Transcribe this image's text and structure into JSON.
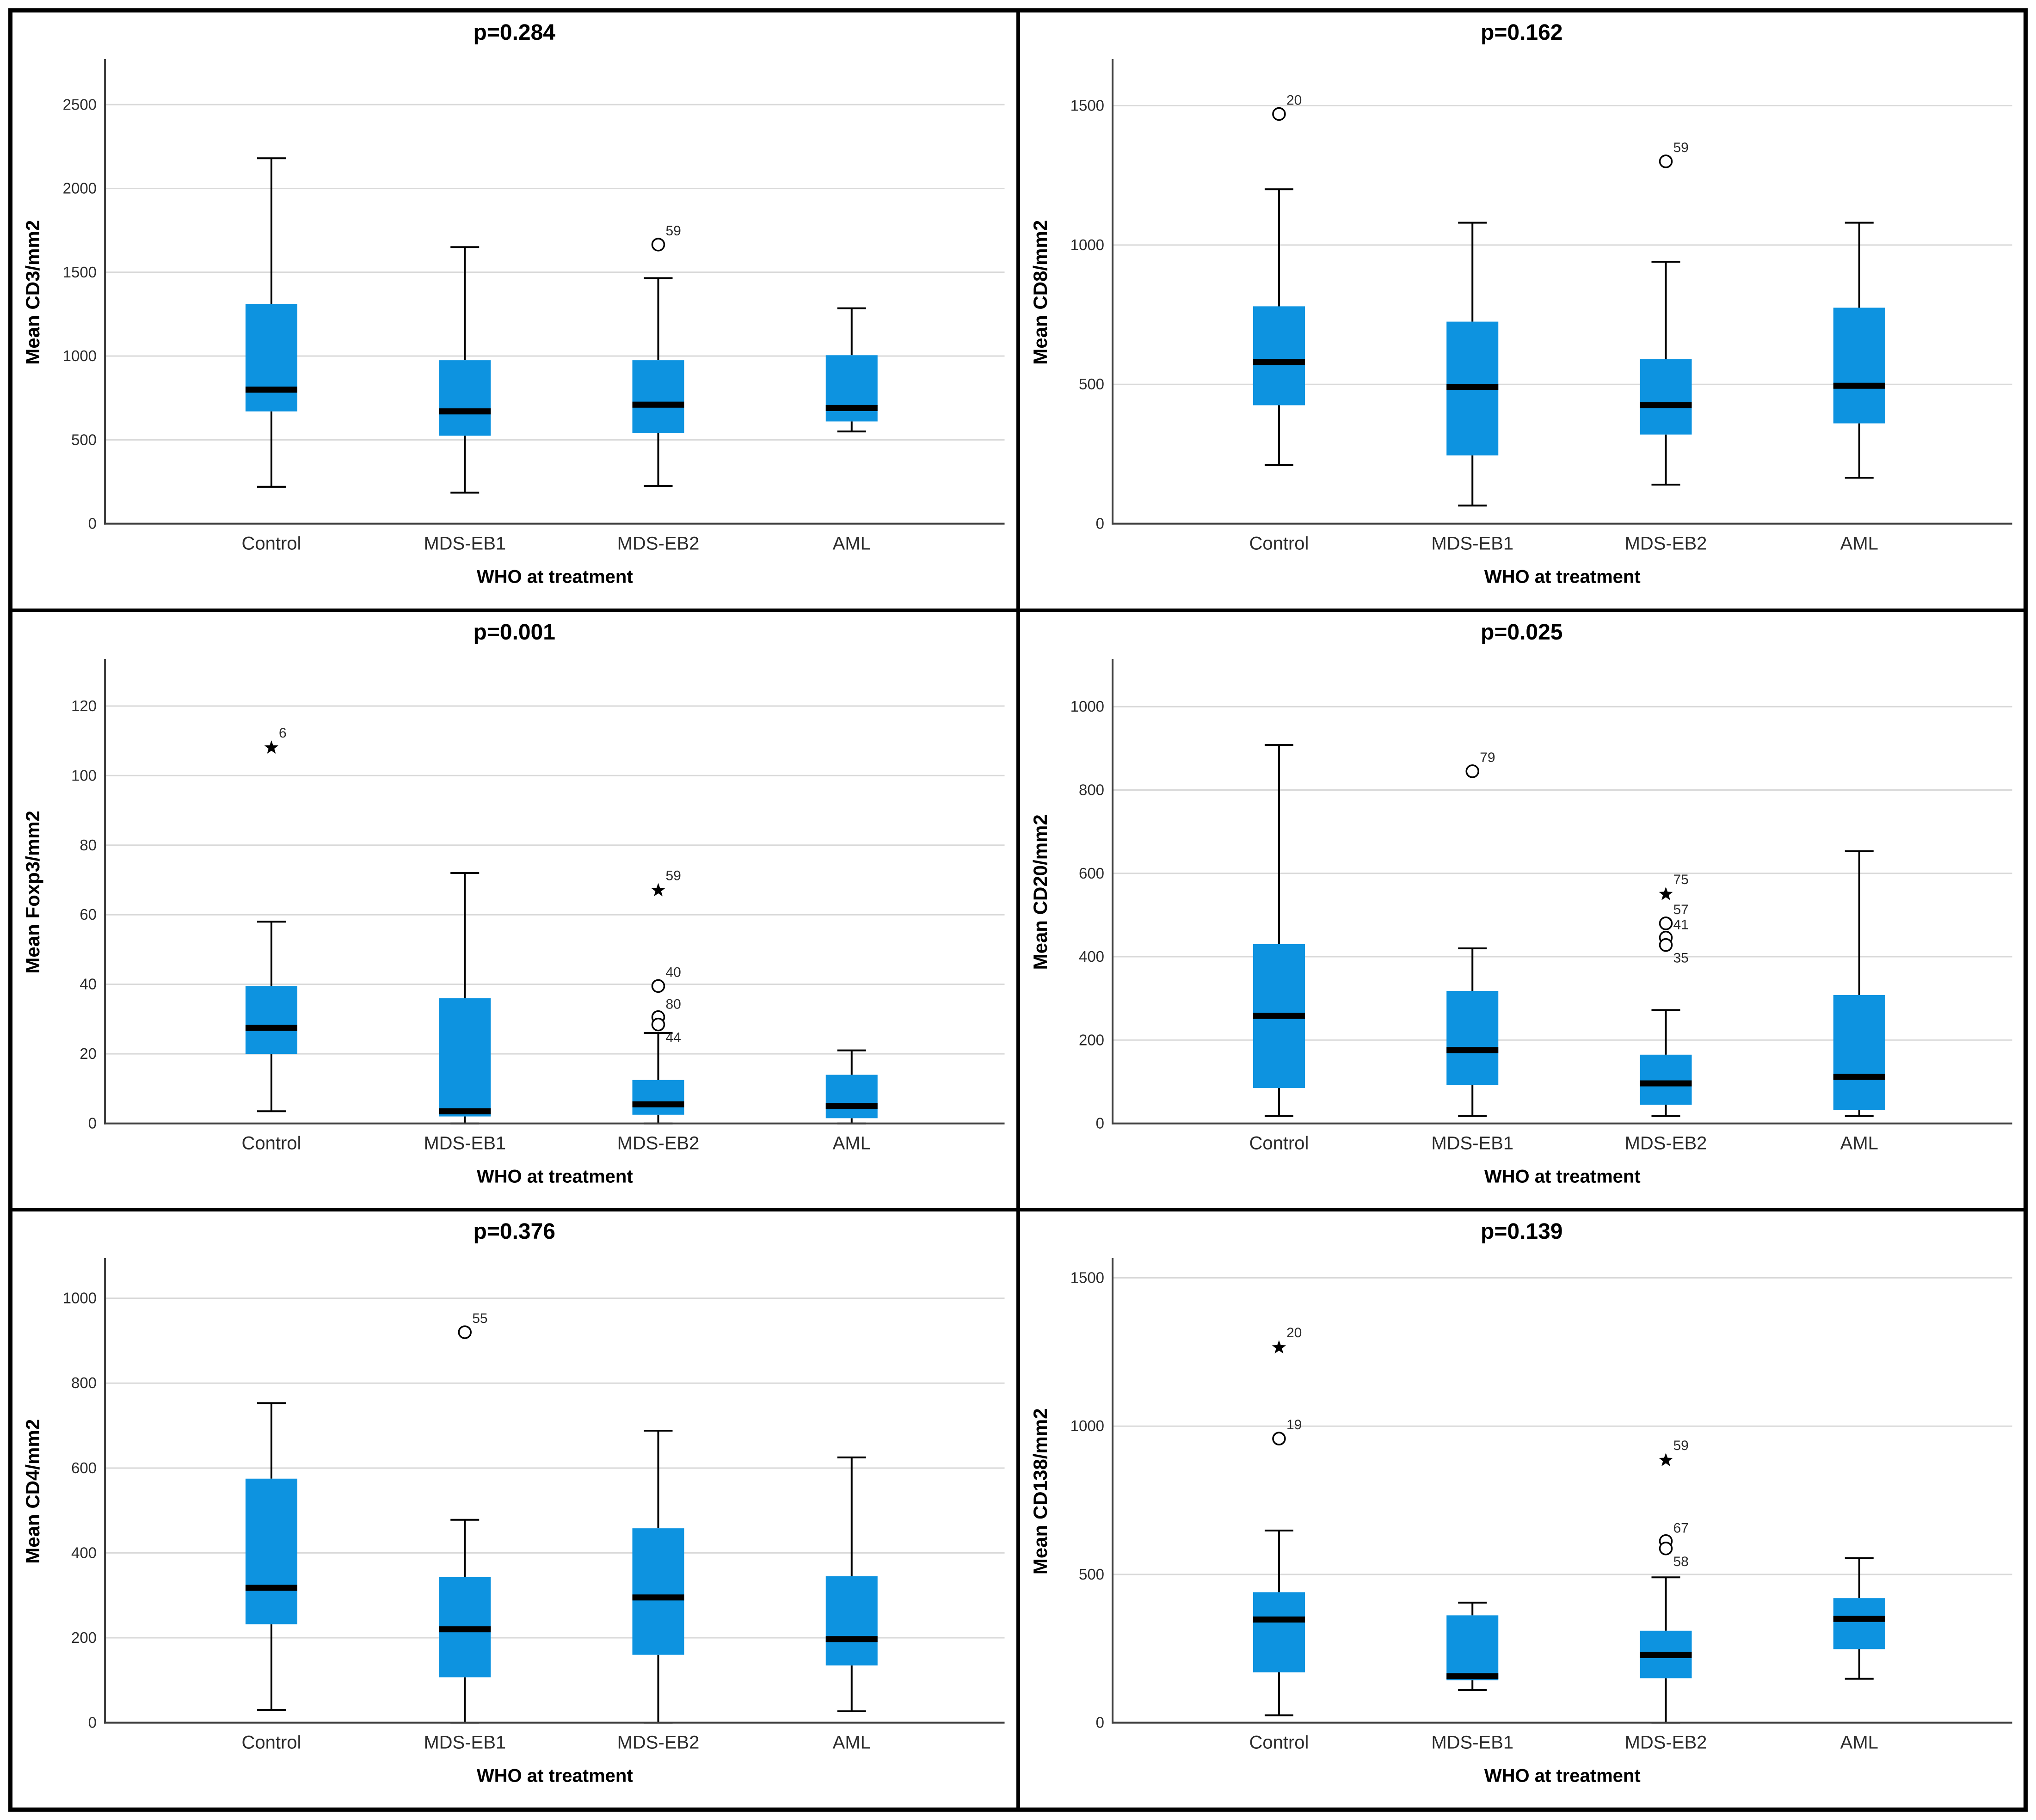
{
  "figure": {
    "description": "Six SPSS-style box plots comparing immunohistochemistry cell densities across WHO treatment groups",
    "x_axis_title": "WHO at treatment",
    "categories": [
      "Control",
      "MDS-EB1",
      "MDS-EB2",
      "AML"
    ]
  },
  "style": {
    "background": "#ffffff",
    "panel_border": "#000000",
    "box_fill": "#0d93e0",
    "median_color": "#000000",
    "whisker_color": "#000000",
    "grid_color": "#d9d9d9",
    "axis_color": "#404040",
    "text_color": "#2b2b2b",
    "title_color": "#000000"
  },
  "chart_data": [
    {
      "type": "box",
      "title": "p=0.284",
      "ylabel": "Mean CD3/mm2",
      "xlabel": "WHO at treatment",
      "categories": [
        "Control",
        "MDS-EB1",
        "MDS-EB2",
        "AML"
      ],
      "ylim": [
        0,
        2760
      ],
      "yticks": [
        0,
        500,
        1000,
        1500,
        2000,
        2500
      ],
      "grid": true,
      "boxes": [
        {
          "category": "Control",
          "min": 220,
          "q1": 670,
          "median": 800,
          "q3": 1310,
          "max": 2180,
          "outliers": []
        },
        {
          "category": "MDS-EB1",
          "min": 185,
          "q1": 525,
          "median": 670,
          "q3": 975,
          "max": 1650,
          "outliers": []
        },
        {
          "category": "MDS-EB2",
          "min": 225,
          "q1": 540,
          "median": 710,
          "q3": 975,
          "max": 1465,
          "outliers": [
            {
              "value": 1665,
              "marker": "circle",
              "label": "59"
            }
          ]
        },
        {
          "category": "AML",
          "min": 550,
          "q1": 610,
          "median": 690,
          "q3": 1005,
          "max": 1285,
          "outliers": []
        }
      ]
    },
    {
      "type": "box",
      "title": "p=0.162",
      "ylabel": "Mean CD8/mm2",
      "xlabel": "WHO at treatment",
      "categories": [
        "Control",
        "MDS-EB1",
        "MDS-EB2",
        "AML"
      ],
      "ylim": [
        0,
        1660
      ],
      "yticks": [
        0,
        500,
        1000,
        1500
      ],
      "grid": true,
      "boxes": [
        {
          "category": "Control",
          "min": 210,
          "q1": 425,
          "median": 580,
          "q3": 780,
          "max": 1200,
          "outliers": [
            {
              "value": 1470,
              "marker": "circle",
              "label": "20"
            }
          ]
        },
        {
          "category": "MDS-EB1",
          "min": 65,
          "q1": 245,
          "median": 490,
          "q3": 725,
          "max": 1080,
          "outliers": []
        },
        {
          "category": "MDS-EB2",
          "min": 140,
          "q1": 320,
          "median": 425,
          "q3": 590,
          "max": 940,
          "outliers": [
            {
              "value": 1300,
              "marker": "circle",
              "label": "59"
            }
          ]
        },
        {
          "category": "AML",
          "min": 165,
          "q1": 360,
          "median": 495,
          "q3": 775,
          "max": 1080,
          "outliers": []
        }
      ]
    },
    {
      "type": "box",
      "title": "p=0.001",
      "ylabel": "Mean Foxp3/mm2",
      "xlabel": "WHO at treatment",
      "categories": [
        "Control",
        "MDS-EB1",
        "MDS-EB2",
        "AML"
      ],
      "ylim": [
        0,
        133
      ],
      "yticks": [
        0,
        20,
        40,
        60,
        80,
        100,
        120
      ],
      "grid": true,
      "boxes": [
        {
          "category": "Control",
          "min": 3.5,
          "q1": 20,
          "median": 27.5,
          "q3": 39.5,
          "max": 58,
          "outliers": [
            {
              "value": 108,
              "marker": "star",
              "label": "6"
            }
          ]
        },
        {
          "category": "MDS-EB1",
          "min": 0,
          "q1": 2,
          "median": 3.5,
          "q3": 36,
          "max": 72,
          "outliers": []
        },
        {
          "category": "MDS-EB2",
          "min": 0,
          "q1": 2.5,
          "median": 5.5,
          "q3": 12.5,
          "max": 26,
          "outliers": [
            {
              "value": 67,
              "marker": "star",
              "label": "59"
            },
            {
              "value": 39.5,
              "marker": "circle",
              "label": "40"
            },
            {
              "value": 29.5,
              "marker": "circle2",
              "label": "80",
              "label2": "44"
            }
          ]
        },
        {
          "category": "AML",
          "min": 0,
          "q1": 1.5,
          "median": 5,
          "q3": 14,
          "max": 21,
          "outliers": []
        }
      ]
    },
    {
      "type": "box",
      "title": "p=0.025",
      "ylabel": "Mean CD20/mm2",
      "xlabel": "WHO at treatment",
      "categories": [
        "Control",
        "MDS-EB1",
        "MDS-EB2",
        "AML"
      ],
      "ylim": [
        0,
        1110
      ],
      "yticks": [
        0,
        200,
        400,
        600,
        800,
        1000
      ],
      "grid": true,
      "boxes": [
        {
          "category": "Control",
          "min": 18,
          "q1": 85,
          "median": 258,
          "q3": 430,
          "max": 908,
          "outliers": []
        },
        {
          "category": "MDS-EB1",
          "min": 18,
          "q1": 92,
          "median": 176,
          "q3": 318,
          "max": 420,
          "outliers": [
            {
              "value": 845,
              "marker": "circle",
              "label": "79"
            }
          ]
        },
        {
          "category": "MDS-EB2",
          "min": 18,
          "q1": 45,
          "median": 96,
          "q3": 165,
          "max": 272,
          "outliers": [
            {
              "value": 550,
              "marker": "star",
              "label": "75"
            },
            {
              "value": 480,
              "marker": "circle",
              "label": "57"
            },
            {
              "value": 437,
              "marker": "circle2",
              "label": "41",
              "label2": "35"
            }
          ]
        },
        {
          "category": "AML",
          "min": 18,
          "q1": 32,
          "median": 112,
          "q3": 308,
          "max": 653,
          "outliers": []
        }
      ]
    },
    {
      "type": "box",
      "title": "p=0.376",
      "ylabel": "Mean CD4/mm2",
      "xlabel": "WHO at treatment",
      "categories": [
        "Control",
        "MDS-EB1",
        "MDS-EB2",
        "AML"
      ],
      "ylim": [
        0,
        1090
      ],
      "yticks": [
        0,
        200,
        400,
        600,
        800,
        1000
      ],
      "grid": true,
      "boxes": [
        {
          "category": "Control",
          "min": 30,
          "q1": 232,
          "median": 318,
          "q3": 575,
          "max": 753,
          "outliers": []
        },
        {
          "category": "MDS-EB1",
          "min": 0,
          "q1": 107,
          "median": 220,
          "q3": 343,
          "max": 478,
          "outliers": [
            {
              "value": 920,
              "marker": "circle",
              "label": "55"
            }
          ]
        },
        {
          "category": "MDS-EB2",
          "min": 0,
          "q1": 160,
          "median": 295,
          "q3": 458,
          "max": 688,
          "outliers": []
        },
        {
          "category": "AML",
          "min": 27,
          "q1": 135,
          "median": 197,
          "q3": 345,
          "max": 625,
          "outliers": []
        }
      ]
    },
    {
      "type": "box",
      "title": "p=0.139",
      "ylabel": "Mean CD138/mm2",
      "xlabel": "WHO at treatment",
      "categories": [
        "Control",
        "MDS-EB1",
        "MDS-EB2",
        "AML"
      ],
      "ylim": [
        0,
        1560
      ],
      "yticks": [
        0,
        500,
        1000,
        1500
      ],
      "grid": true,
      "boxes": [
        {
          "category": "Control",
          "min": 25,
          "q1": 170,
          "median": 348,
          "q3": 440,
          "max": 648,
          "outliers": [
            {
              "value": 1265,
              "marker": "star",
              "label": "20"
            },
            {
              "value": 958,
              "marker": "circle",
              "label": "19"
            }
          ]
        },
        {
          "category": "MDS-EB1",
          "min": 110,
          "q1": 143,
          "median": 157,
          "q3": 362,
          "max": 405,
          "outliers": []
        },
        {
          "category": "MDS-EB2",
          "min": 0,
          "q1": 150,
          "median": 228,
          "q3": 310,
          "max": 490,
          "outliers": [
            {
              "value": 885,
              "marker": "star",
              "label": "59"
            },
            {
              "value": 600,
              "marker": "circle2",
              "label": "67",
              "label2": "58"
            }
          ]
        },
        {
          "category": "AML",
          "min": 148,
          "q1": 248,
          "median": 350,
          "q3": 420,
          "max": 555,
          "outliers": []
        }
      ]
    }
  ]
}
